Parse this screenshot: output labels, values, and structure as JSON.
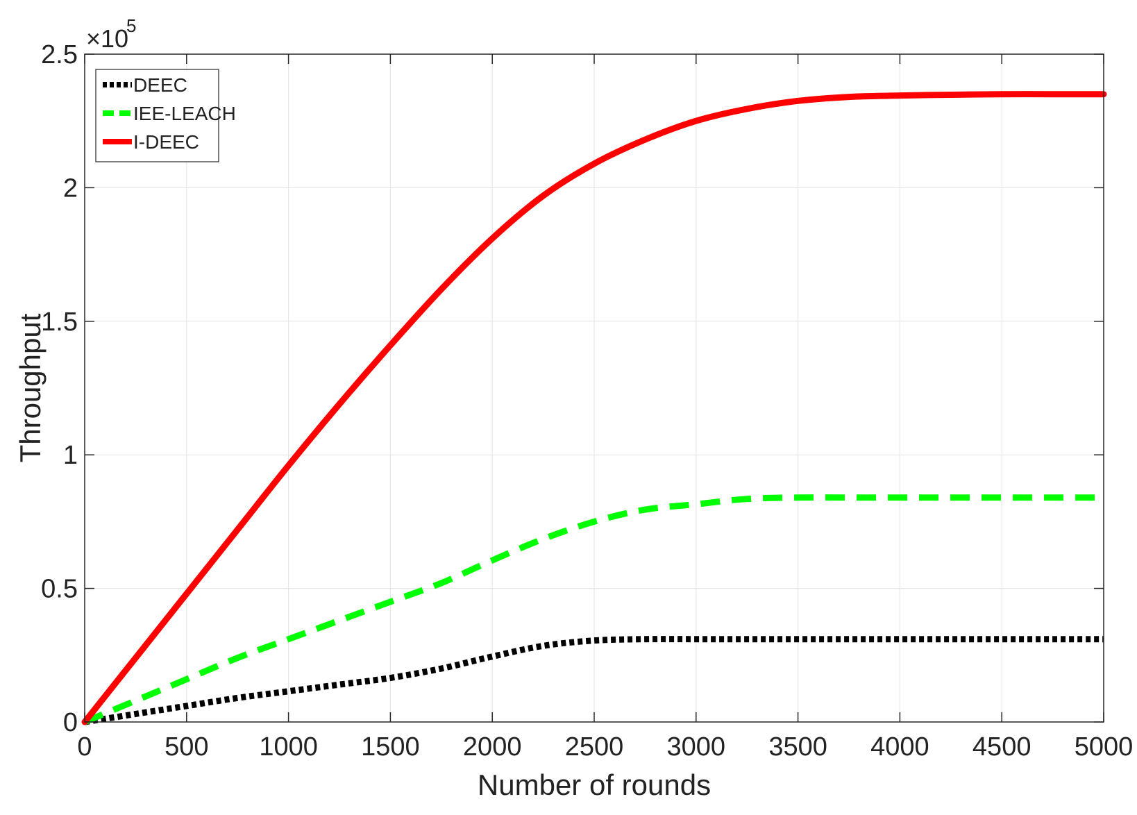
{
  "chart_data": {
    "type": "line",
    "xlabel": "Number of rounds",
    "ylabel": "Throughput",
    "xlim": [
      0,
      5000
    ],
    "ylim": [
      0,
      250000
    ],
    "x_ticks": [
      "0",
      "500",
      "1000",
      "1500",
      "2000",
      "2500",
      "3000",
      "3500",
      "4000",
      "4500",
      "5000"
    ],
    "y_ticks": [
      "0",
      "0.5",
      "1",
      "1.5",
      "2",
      "2.5"
    ],
    "y_multiplier": {
      "base": "×10",
      "exponent": "5"
    },
    "grid": true,
    "legend_position": "top-left",
    "x": [
      0,
      250,
      500,
      750,
      1000,
      1250,
      1500,
      1750,
      2000,
      2250,
      2500,
      2750,
      3000,
      3250,
      3500,
      3750,
      4000,
      4250,
      4500,
      4750,
      5000
    ],
    "series": [
      {
        "name": "DEEC",
        "color": "#000000",
        "style": "dotted",
        "values": [
          0,
          3000,
          6000,
          9000,
          11500,
          14000,
          16500,
          20000,
          24500,
          28500,
          30500,
          31000,
          31000,
          31000,
          31000,
          31000,
          31000,
          31000,
          31000,
          31000,
          31000
        ]
      },
      {
        "name": "IEE-LEACH",
        "color": "#00ff00",
        "style": "dashed",
        "values": [
          0,
          8000,
          16000,
          24000,
          31000,
          38000,
          45000,
          52000,
          60500,
          68500,
          75000,
          79500,
          81500,
          83500,
          84000,
          84000,
          84000,
          84000,
          84000,
          84000,
          84000
        ]
      },
      {
        "name": "I-DEEC",
        "color": "#ff0000",
        "style": "solid",
        "values": [
          0,
          24000,
          48000,
          72000,
          96000,
          119000,
          141000,
          162000,
          181000,
          197000,
          209000,
          218000,
          225000,
          229500,
          232500,
          234000,
          234500,
          234800,
          235000,
          235000,
          235000
        ]
      }
    ]
  }
}
